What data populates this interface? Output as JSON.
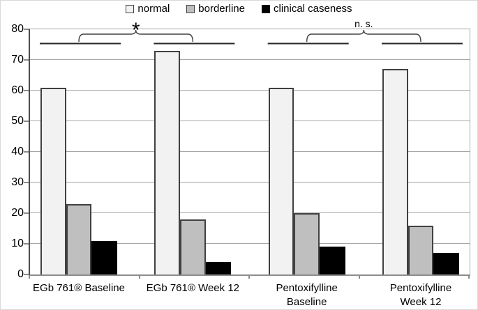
{
  "chart_data": {
    "type": "bar",
    "title": "",
    "xlabel": "",
    "ylabel": "",
    "categories": [
      "EGb 761® Baseline",
      "EGb 761® Week 12",
      "Pentoxifylline Baseline",
      "Pentoxifylline Week 12"
    ],
    "category_wrap": [
      false,
      false,
      true,
      true
    ],
    "series": [
      {
        "name": "normal",
        "color": "#f2f2f2",
        "border_color": "#404040",
        "values": [
          61,
          73,
          61,
          67
        ]
      },
      {
        "name": "borderline",
        "color": "#bfbfbf",
        "border_color": "#404040",
        "values": [
          23,
          18,
          20,
          16
        ]
      },
      {
        "name": "clinical caseness",
        "color": "#000000",
        "border_color": "#000000",
        "values": [
          11,
          4,
          9,
          7
        ]
      }
    ],
    "ylim": [
      0,
      80
    ],
    "ytick_step": 10,
    "yticklabels": [
      "0",
      "10",
      "20",
      "30",
      "40",
      "50",
      "60",
      "70",
      "80"
    ],
    "grid": true,
    "legend_position": "top",
    "annotations": [
      {
        "label": "*",
        "between_groups": [
          0,
          1
        ]
      },
      {
        "label": "n. s.",
        "between_groups": [
          2,
          3
        ]
      }
    ]
  },
  "colors": {
    "gridline": "#a6a6a6",
    "axis_left": "#4d4d4d",
    "axis_bottom": "#8c8c8c",
    "frame": "#a6a6a6",
    "bracket": "#404040",
    "underline": "#262626",
    "text": "#000000"
  }
}
